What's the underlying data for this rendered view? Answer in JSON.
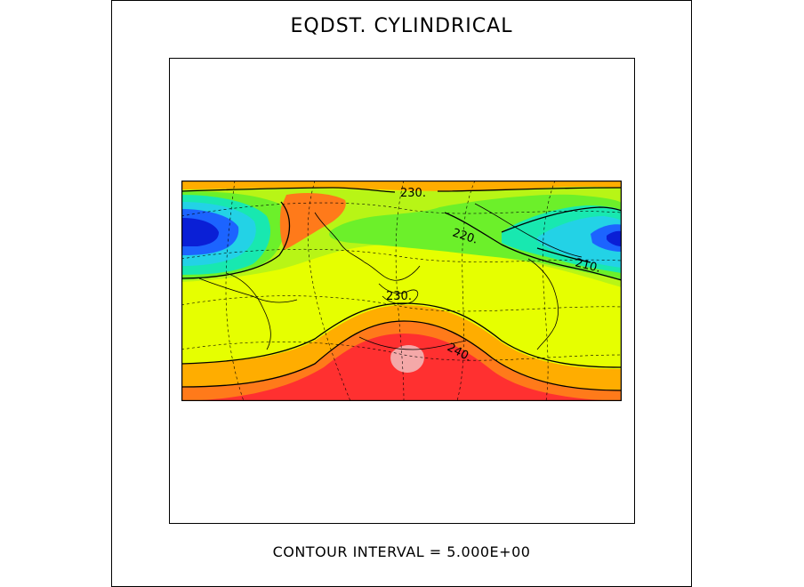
{
  "plot": {
    "title": "EQDST. CYLINDRICAL",
    "caption": "CONTOUR INTERVAL = 5.000E+00"
  },
  "contour_labels": [
    "230.",
    "220.",
    "210.",
    "230.",
    "240."
  ],
  "colors": {
    "darkblue": "#0a1fd6",
    "blue": "#1c64ff",
    "cyan": "#23d2e6",
    "teal": "#18e8b0",
    "green": "#6cf02a",
    "lime": "#b8f516",
    "yellow": "#e6ff00",
    "orange": "#ffad00",
    "orangered": "#ff7a1a",
    "red": "#ff3030",
    "pink": "#f4a8a8"
  }
}
